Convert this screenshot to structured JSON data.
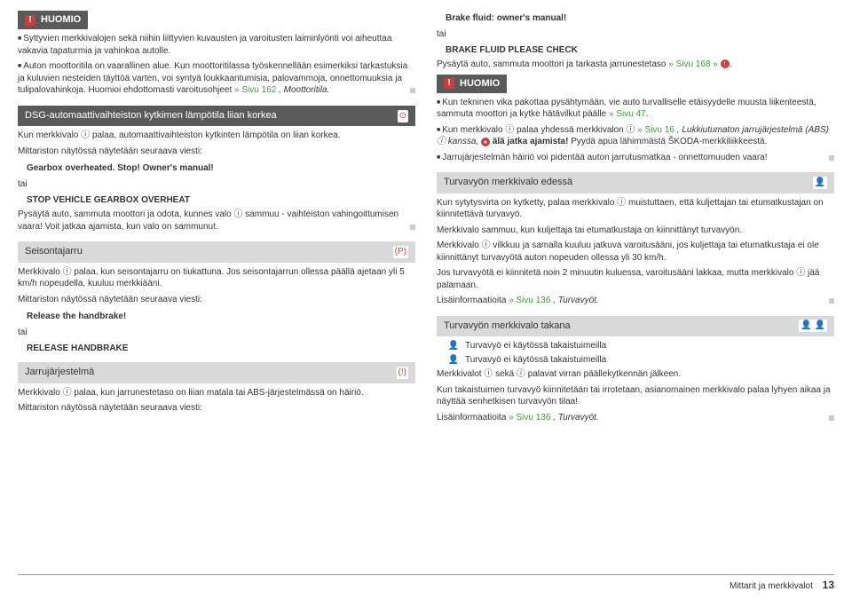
{
  "left": {
    "huomio_title": "HUOMIO",
    "huomio_body_1": "Syttyvien merkkivalojen sekä niihin liittyvien kuvausten ja varoitusten laiminlyönti voi aiheuttaa vakavia tapaturmia ja vahinkoa autolle.",
    "huomio_body_2a": "Auton moottoritila on vaarallinen alue. Kun moottoritilassa työskennellään esimerkiksi tarkastuksia ja kuluvien nesteiden täyttöä varten, voi syntyä loukkaantumisia, palovammoja, onnettomuuksia ja tulipalovahinkoja. Huomioi ehdottomasti varoitusohjeet ",
    "huomio_body_2_link": "» Sivu 162",
    "huomio_body_2b": ", Moottoritila.",
    "sec1_title": "DSG-automaattivaihteiston kytkimen lämpötila liian korkea",
    "sec1_p1": "Kun merkkivalo ⓘ palaa, automaattivaihteiston kytkinten lämpötila on liian korkea.",
    "sec1_p2": "Mittariston näytössä näytetään seuraava viesti:",
    "sec1_msg1": "Gearbox overheated. Stop! Owner's manual!",
    "sec1_tai": "tai",
    "sec1_msg2": "STOP VEHICLE GEARBOX OVERHEAT",
    "sec1_p3": "Pysäytä auto, sammuta moottori ja odota, kunnes valo ⓘ sammuu - vaihteiston vahingoittumisen vaara! Voit jatkaa ajamista, kun valo on sammunut.",
    "sec2_title": "Seisontajarru",
    "sec2_p1": "Merkkivalo ⓘ palaa, kun seisontajarru on tiukattuna. Jos seisontajarrun ollessa päällä ajetaan yli 5 km/h nopeudella, kuuluu merkkiääni.",
    "sec2_p2": "Mittariston näytössä näytetään seuraava viesti:",
    "sec2_msg1": "Release the handbrake!",
    "sec2_tai": "tai",
    "sec2_msg2": "RELEASE HANDBRAKE",
    "sec3_title": "Jarrujärjestelmä",
    "sec3_p1": "Merkkivalo ⓘ palaa, kun jarrunestetaso on liian matala tai ABS-järjestelmässä on häiriö.",
    "sec3_p2": "Mittariston näytössä näytetään seuraava viesti:"
  },
  "right": {
    "r_msg1": "Brake fluid: owner's manual!",
    "r_tai1": "tai",
    "r_msg2": "BRAKE FLUID PLEASE CHECK",
    "r_p1a": "Pysäytä auto, sammuta moottori ja tarkasta jarrunestetaso ",
    "r_p1_link": "» Sivu 168 »",
    "huomio_title": "HUOMIO",
    "h_b1a": "Kun tekninen vika pakottaa pysähtymään, vie auto turvalliselle etäisyydelle muusta liikenteestä, sammuta moottori ja kytke hätävilkut päälle ",
    "h_b1_link": "» Sivu 47",
    "h_b2a": "Kun merkkivalo ⓘ palaa yhdessä merkkivalon ⓘ ",
    "h_b2_link": "» Sivu 16",
    "h_b2b": ", Lukkiutumaton jarrujärjestelmä (ABS) ⓘ kanssa, ",
    "h_b2c": "älä jatka ajamista!",
    "h_b2d": " Pyydä apua lähimmästä ŠKODA-merkkiliikkeestä.",
    "h_b3": "Jarrujärjestelmän häiriö voi pidentää auton jarrutusmatkaa - onnettomuuden vaara!",
    "sec4_title": "Turvavyön merkkivalo edessä",
    "sec4_p1": "Kun sytytysvirta on kytketty, palaa merkkivalo ⓘ muistuttaen, että kuljettajan tai etumatkustajan on kiinnitettävä turvavyö.",
    "sec4_p2": "Merkkivalo sammuu, kun kuljettaja tai etumatkustaja on kiinnittänyt turvavyön.",
    "sec4_p3": "Merkkivalo ⓘ vilkkuu ja samalla kuuluu jatkuva varoitusääni, jos kuljettaja tai etumatkustaja ei ole kiinnittänyt turvavyötä auton nopeuden ollessa yli 30 km/h.",
    "sec4_p4": "Jos turvavyötä ei kiinnitetä noin 2 minuutin kuluessa, varoitusääni lakkaa, mutta merkkivalo ⓘ jää palamaan.",
    "sec4_p5a": "Lisäinformaatioita ",
    "sec4_p5_link": "» Sivu 136",
    "sec4_p5b": ", Turvavyöt.",
    "sec5_title": "Turvavyön merkkivalo takana",
    "sec5_l1": "Turvavyö ei käytössä takaistuimeilla",
    "sec5_l2": "Turvavyö ei käytössä takaistuimeilla",
    "sec5_p1": "Merkkivalot ⓘ sekä ⓘ palavat virran päällekytkennän jälkeen.",
    "sec5_p2": "Kun takaistuimen turvavyö kiinnitetään tai irrotetaan, asianomainen merkkivalo palaa lyhyen aikaa ja näyttää senhetkisen turvavyön tilaa!",
    "sec5_p3a": "Lisäinformaatioita ",
    "sec5_p3_link": "» Sivu 136",
    "sec5_p3b": ", Turvavyöt."
  },
  "footer": {
    "label": "Mittarit ja merkkivalot",
    "page": "13"
  }
}
